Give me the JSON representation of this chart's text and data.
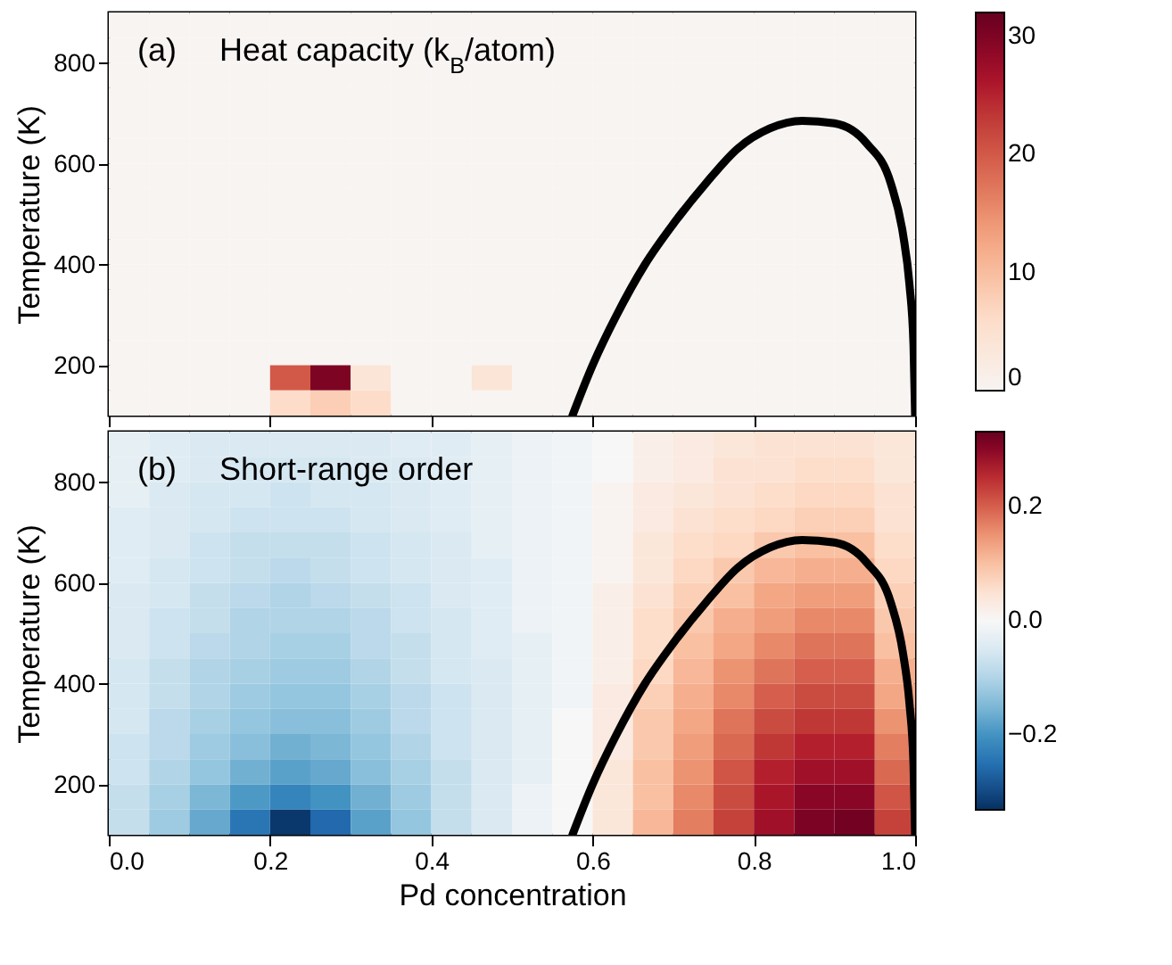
{
  "chart_data": [
    {
      "type": "heatmap",
      "ylabel": "Temperature (K)",
      "annotations": [
        "(a)",
        "Heat capacity (k$_{B}$/atom)"
      ],
      "x": [
        0.025,
        0.075,
        0.125,
        0.175,
        0.225,
        0.275,
        0.325,
        0.375,
        0.425,
        0.475,
        0.525,
        0.575,
        0.625,
        0.675,
        0.725,
        0.775,
        0.825,
        0.875,
        0.925,
        0.975
      ],
      "y": [
        875,
        825,
        775,
        725,
        675,
        625,
        575,
        525,
        475,
        425,
        375,
        325,
        275,
        225,
        175,
        125
      ],
      "cells": [
        [
          0,
          0,
          0,
          0,
          0,
          0,
          0,
          0,
          0,
          0,
          0,
          0,
          0,
          0,
          0,
          0,
          0,
          0,
          0,
          0
        ],
        [
          0,
          0,
          0,
          0,
          0,
          0,
          0,
          0,
          0,
          0,
          0,
          0,
          0,
          0,
          0,
          0,
          0,
          0,
          0,
          0
        ],
        [
          0,
          0,
          0,
          0,
          0,
          0,
          0,
          0,
          0,
          0,
          0,
          0,
          0,
          0,
          0,
          0,
          0,
          0,
          0,
          0
        ],
        [
          0,
          0,
          0,
          0,
          0,
          0,
          0,
          0,
          0,
          0,
          0,
          0,
          0,
          0,
          0,
          0,
          0,
          0,
          0,
          0
        ],
        [
          0,
          0,
          0,
          0,
          0,
          0,
          0,
          0,
          0,
          0,
          0,
          0,
          0,
          0,
          0,
          0,
          0,
          0,
          0,
          0
        ],
        [
          0,
          0,
          0,
          0,
          0,
          0,
          0,
          0,
          0,
          0,
          0,
          0,
          0,
          0,
          0,
          0,
          0,
          0,
          0,
          0
        ],
        [
          0,
          0,
          0,
          0,
          0,
          0,
          0,
          0,
          0,
          0,
          0,
          0,
          0,
          0,
          0,
          0,
          0,
          0,
          0,
          0
        ],
        [
          0,
          0,
          0,
          0,
          0,
          0,
          0,
          0,
          0,
          0,
          0,
          0,
          0,
          0,
          0,
          0,
          0,
          0,
          0,
          0
        ],
        [
          0,
          0,
          0,
          0,
          0,
          0,
          0,
          0,
          0,
          0,
          0,
          0,
          0,
          0,
          0,
          0,
          0,
          0,
          0,
          0
        ],
        [
          0,
          0,
          0,
          0,
          0,
          0,
          0,
          0,
          0,
          0,
          0,
          0,
          0,
          0,
          0,
          0,
          0,
          0,
          0,
          0
        ],
        [
          0,
          0,
          0,
          0,
          0,
          0,
          0,
          0,
          0,
          0,
          0,
          0,
          0,
          0,
          0,
          0,
          0,
          0,
          0,
          0
        ],
        [
          0,
          0,
          0,
          0,
          0,
          0,
          0,
          0,
          0,
          0,
          0,
          0,
          0,
          0,
          0,
          0,
          0,
          0,
          0,
          0
        ],
        [
          0,
          0,
          0,
          0,
          0,
          0,
          0,
          0,
          0,
          0,
          0,
          0,
          0,
          0,
          0,
          0,
          0,
          0,
          0,
          0
        ],
        [
          0,
          0,
          0,
          0,
          0,
          0,
          0,
          0,
          0,
          0,
          0,
          0,
          0,
          0,
          0,
          0,
          0,
          0,
          0,
          0
        ],
        [
          0,
          0,
          0,
          0,
          20,
          30,
          4,
          0,
          0,
          4,
          0,
          0,
          0,
          0,
          0,
          0,
          0,
          0,
          0,
          0
        ],
        [
          0,
          0,
          0,
          0,
          6,
          8,
          6,
          0,
          0,
          0,
          0,
          0,
          0,
          0,
          0,
          0,
          0,
          0,
          0,
          0
        ]
      ],
      "clim": [
        0,
        32
      ],
      "cticks": [
        0,
        10,
        20,
        30
      ],
      "series": [
        {
          "type": "line",
          "color": "#000000",
          "x": [
            0.575,
            0.6,
            0.63,
            0.665,
            0.7,
            0.74,
            0.78,
            0.82,
            0.86,
            0.9,
            0.94,
            0.97,
            0.985,
            0.993,
            0.998,
            1.0
          ],
          "values": [
            100,
            200,
            300,
            400,
            480,
            560,
            630,
            670,
            685,
            680,
            640,
            560,
            460,
            360,
            240,
            100
          ]
        }
      ],
      "xlim": [
        0,
        1
      ],
      "xticks": [
        0,
        0.2,
        0.4,
        0.6,
        0.8,
        1
      ],
      "ylim": [
        100,
        900
      ],
      "yticks": [
        200,
        400,
        600,
        800
      ],
      "tick_labels": "y"
    },
    {
      "type": "heatmap",
      "xlabel": "Pd concentration",
      "ylabel": "Temperature (K)",
      "annotations": [
        "(b)",
        "Short-range order"
      ],
      "x": [
        0.025,
        0.075,
        0.125,
        0.175,
        0.225,
        0.275,
        0.325,
        0.375,
        0.425,
        0.475,
        0.525,
        0.575,
        0.625,
        0.675,
        0.725,
        0.775,
        0.825,
        0.875,
        0.925,
        0.975
      ],
      "y": [
        875,
        825,
        775,
        725,
        675,
        625,
        575,
        525,
        475,
        425,
        375,
        325,
        275,
        225,
        175,
        125
      ],
      "cells": [
        [
          -0.03,
          -0.04,
          -0.05,
          -0.05,
          -0.05,
          -0.05,
          -0.05,
          -0.04,
          -0.04,
          -0.03,
          -0.02,
          -0.01,
          0.0,
          0.02,
          0.03,
          0.04,
          0.05,
          0.05,
          0.05,
          0.04
        ],
        [
          -0.03,
          -0.04,
          -0.05,
          -0.06,
          -0.06,
          -0.06,
          -0.05,
          -0.05,
          -0.04,
          -0.03,
          -0.02,
          -0.01,
          0.0,
          0.02,
          0.03,
          0.05,
          0.05,
          0.06,
          0.06,
          0.04
        ],
        [
          -0.03,
          -0.05,
          -0.06,
          -0.06,
          -0.07,
          -0.06,
          -0.06,
          -0.05,
          -0.04,
          -0.03,
          -0.02,
          -0.01,
          0.01,
          0.03,
          0.04,
          0.05,
          0.06,
          0.07,
          0.07,
          0.05
        ],
        [
          -0.04,
          -0.05,
          -0.06,
          -0.07,
          -0.07,
          -0.07,
          -0.06,
          -0.05,
          -0.04,
          -0.03,
          -0.02,
          -0.01,
          0.01,
          0.03,
          0.05,
          0.06,
          0.07,
          0.08,
          0.08,
          0.05
        ],
        [
          -0.04,
          -0.05,
          -0.07,
          -0.08,
          -0.08,
          -0.08,
          -0.07,
          -0.06,
          -0.05,
          -0.03,
          -0.02,
          -0.01,
          0.01,
          0.04,
          0.06,
          0.07,
          0.09,
          0.1,
          0.1,
          0.06
        ],
        [
          -0.04,
          -0.06,
          -0.07,
          -0.08,
          -0.09,
          -0.08,
          -0.07,
          -0.06,
          -0.05,
          -0.04,
          -0.02,
          -0.01,
          0.01,
          0.04,
          0.07,
          0.09,
          0.11,
          0.12,
          0.12,
          0.07
        ],
        [
          -0.05,
          -0.06,
          -0.08,
          -0.09,
          -0.1,
          -0.09,
          -0.08,
          -0.07,
          -0.05,
          -0.04,
          -0.02,
          -0.01,
          0.02,
          0.05,
          0.08,
          0.1,
          0.13,
          0.14,
          0.14,
          0.08
        ],
        [
          -0.05,
          -0.07,
          -0.08,
          -0.1,
          -0.1,
          -0.1,
          -0.09,
          -0.07,
          -0.06,
          -0.04,
          -0.02,
          -0.01,
          0.02,
          0.06,
          0.09,
          0.12,
          0.14,
          0.16,
          0.16,
          0.09
        ],
        [
          -0.05,
          -0.07,
          -0.09,
          -0.1,
          -0.11,
          -0.11,
          -0.09,
          -0.08,
          -0.06,
          -0.04,
          -0.03,
          -0.01,
          0.02,
          0.06,
          0.1,
          0.13,
          0.16,
          0.18,
          0.18,
          0.1
        ],
        [
          -0.06,
          -0.08,
          -0.1,
          -0.11,
          -0.12,
          -0.12,
          -0.1,
          -0.08,
          -0.06,
          -0.05,
          -0.03,
          -0.01,
          0.02,
          0.07,
          0.11,
          0.15,
          0.18,
          0.2,
          0.2,
          0.12
        ],
        [
          -0.06,
          -0.08,
          -0.1,
          -0.12,
          -0.13,
          -0.13,
          -0.11,
          -0.09,
          -0.07,
          -0.05,
          -0.03,
          -0.01,
          0.03,
          0.08,
          0.12,
          0.16,
          0.2,
          0.22,
          0.22,
          0.13
        ],
        [
          -0.06,
          -0.09,
          -0.11,
          -0.13,
          -0.14,
          -0.14,
          -0.12,
          -0.09,
          -0.07,
          -0.05,
          -0.03,
          0.0,
          0.03,
          0.09,
          0.13,
          0.18,
          0.22,
          0.24,
          0.24,
          0.15
        ],
        [
          -0.07,
          -0.09,
          -0.12,
          -0.14,
          -0.16,
          -0.15,
          -0.13,
          -0.1,
          -0.07,
          -0.05,
          -0.03,
          0.0,
          0.03,
          0.09,
          0.14,
          0.19,
          0.24,
          0.26,
          0.26,
          0.17
        ],
        [
          -0.07,
          -0.1,
          -0.13,
          -0.16,
          -0.18,
          -0.17,
          -0.14,
          -0.11,
          -0.08,
          -0.05,
          -0.03,
          0.0,
          0.04,
          0.1,
          0.15,
          0.21,
          0.26,
          0.28,
          0.28,
          0.19
        ],
        [
          -0.08,
          -0.11,
          -0.15,
          -0.19,
          -0.22,
          -0.2,
          -0.16,
          -0.12,
          -0.08,
          -0.05,
          -0.02,
          0.0,
          0.04,
          0.1,
          0.16,
          0.22,
          0.27,
          0.3,
          0.3,
          0.21
        ],
        [
          -0.08,
          -0.12,
          -0.17,
          -0.24,
          -0.32,
          -0.26,
          -0.18,
          -0.13,
          -0.08,
          -0.05,
          -0.02,
          0.0,
          0.04,
          0.11,
          0.17,
          0.23,
          0.28,
          0.31,
          0.32,
          0.23
        ]
      ],
      "clim": [
        -0.33,
        0.33
      ],
      "cticks": [
        -0.2,
        {
          "value": 0,
          "label": "0.0"
        },
        0.2
      ],
      "series": [
        {
          "type": "line",
          "color": "#000000",
          "x": [
            0.575,
            0.6,
            0.63,
            0.665,
            0.7,
            0.74,
            0.78,
            0.82,
            0.86,
            0.9,
            0.94,
            0.97,
            0.985,
            0.993,
            0.998,
            1.0
          ],
          "values": [
            100,
            200,
            300,
            400,
            480,
            560,
            630,
            670,
            685,
            680,
            640,
            560,
            460,
            360,
            240,
            100
          ]
        }
      ],
      "xlim": [
        0,
        1
      ],
      "xticks": [
        {
          "value": 0,
          "label": "0.0"
        },
        0.2,
        0.4,
        0.6,
        0.8,
        {
          "value": 1,
          "label": "1.0"
        }
      ],
      "ylim": [
        100,
        900
      ],
      "yticks": [
        200,
        400,
        600,
        800
      ]
    }
  ]
}
